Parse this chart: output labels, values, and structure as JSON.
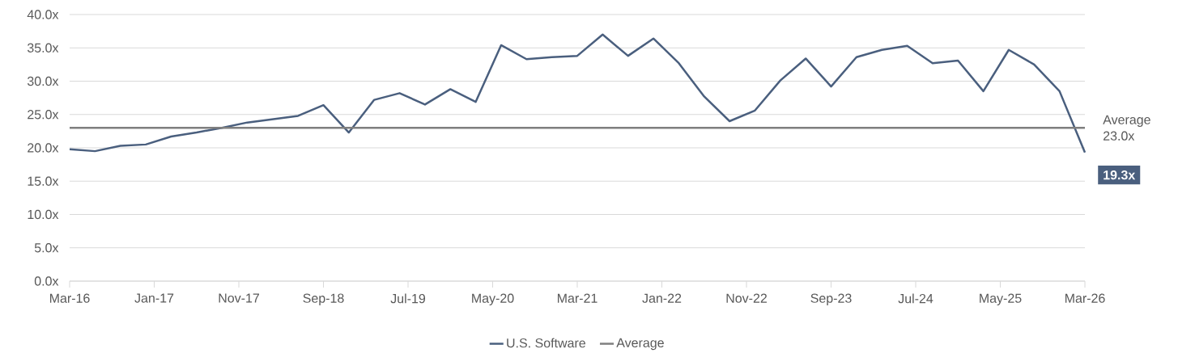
{
  "chart_data": {
    "type": "line",
    "x": [
      "2016-03",
      "2016-06",
      "2016-09",
      "2016-12",
      "2017-03",
      "2017-06",
      "2017-09",
      "2017-12",
      "2018-03",
      "2018-06",
      "2018-09",
      "2018-12",
      "2019-03",
      "2019-06",
      "2019-09",
      "2019-12",
      "2020-03",
      "2020-06",
      "2020-09",
      "2020-12",
      "2021-03",
      "2021-06",
      "2021-09",
      "2021-12",
      "2022-03",
      "2022-06",
      "2022-09",
      "2022-12",
      "2023-03",
      "2023-06",
      "2023-09",
      "2023-12",
      "2024-03",
      "2024-06",
      "2024-09",
      "2024-12",
      "2025-03",
      "2025-06",
      "2025-09",
      "2025-12",
      "2026-03"
    ],
    "series": [
      {
        "name": "U.S. Software",
        "color": "#4a5f7e",
        "values": [
          19.8,
          19.5,
          20.3,
          20.5,
          21.7,
          22.3,
          23.0,
          23.8,
          24.3,
          24.8,
          26.4,
          22.3,
          27.2,
          28.2,
          26.5,
          28.8,
          26.9,
          35.4,
          33.3,
          33.6,
          33.8,
          37.0,
          33.8,
          36.4,
          32.7,
          27.7,
          24.0,
          25.6,
          30.1,
          33.4,
          29.2,
          33.6,
          34.7,
          35.3,
          32.7,
          33.1,
          28.5,
          34.7,
          32.5,
          28.5,
          19.3
        ],
        "value_labels": [
          null,
          null,
          null,
          null,
          null,
          null,
          null,
          null,
          null,
          null,
          null,
          null,
          null,
          null,
          null,
          null,
          null,
          null,
          null,
          null,
          null,
          null,
          null,
          null,
          null,
          null,
          null,
          null,
          null,
          null,
          null,
          null,
          null,
          null,
          null,
          null,
          null,
          null,
          null,
          null,
          "19.3x"
        ]
      },
      {
        "name": "Average",
        "color": "#7f7f7f",
        "values": [
          23.0,
          23.0,
          23.0,
          23.0,
          23.0,
          23.0,
          23.0,
          23.0,
          23.0,
          23.0,
          23.0,
          23.0,
          23.0,
          23.0,
          23.0,
          23.0,
          23.0,
          23.0,
          23.0,
          23.0,
          23.0,
          23.0,
          23.0,
          23.0,
          23.0,
          23.0,
          23.0,
          23.0,
          23.0,
          23.0,
          23.0,
          23.0,
          23.0,
          23.0,
          23.0,
          23.0,
          23.0,
          23.0,
          23.0,
          23.0,
          23.0
        ]
      }
    ],
    "xlim": [
      "2016-03",
      "2026-03"
    ],
    "xticks": [
      {
        "value": "2016-03",
        "label": "Mar-16"
      },
      {
        "value": "2017-01",
        "label": "Jan-17"
      },
      {
        "value": "2017-11",
        "label": "Nov-17"
      },
      {
        "value": "2018-09",
        "label": "Sep-18"
      },
      {
        "value": "2019-07",
        "label": "Jul-19"
      },
      {
        "value": "2020-05",
        "label": "May-20"
      },
      {
        "value": "2021-03",
        "label": "Mar-21"
      },
      {
        "value": "2022-01",
        "label": "Jan-22"
      },
      {
        "value": "2022-11",
        "label": "Nov-22"
      },
      {
        "value": "2023-09",
        "label": "Sep-23"
      },
      {
        "value": "2024-07",
        "label": "Jul-24"
      },
      {
        "value": "2025-05",
        "label": "May-25"
      },
      {
        "value": "2026-03",
        "label": "Mar-26"
      }
    ],
    "ylim": [
      0,
      40
    ],
    "yticks": [
      {
        "value": 0,
        "label": "0.0x"
      },
      {
        "value": 5,
        "label": "5.0x"
      },
      {
        "value": 10,
        "label": "10.0x"
      },
      {
        "value": 15,
        "label": "15.0x"
      },
      {
        "value": 20,
        "label": "20.0x"
      },
      {
        "value": 25,
        "label": "25.0x"
      },
      {
        "value": 30,
        "label": "30.0x"
      },
      {
        "value": 35,
        "label": "35.0x"
      },
      {
        "value": 40,
        "label": "40.0x"
      }
    ],
    "grid": "y",
    "legend": "bottom",
    "annotations": [
      {
        "text": "Average 23.0x",
        "x": "2026-03",
        "y": 23.0
      }
    ]
  }
}
